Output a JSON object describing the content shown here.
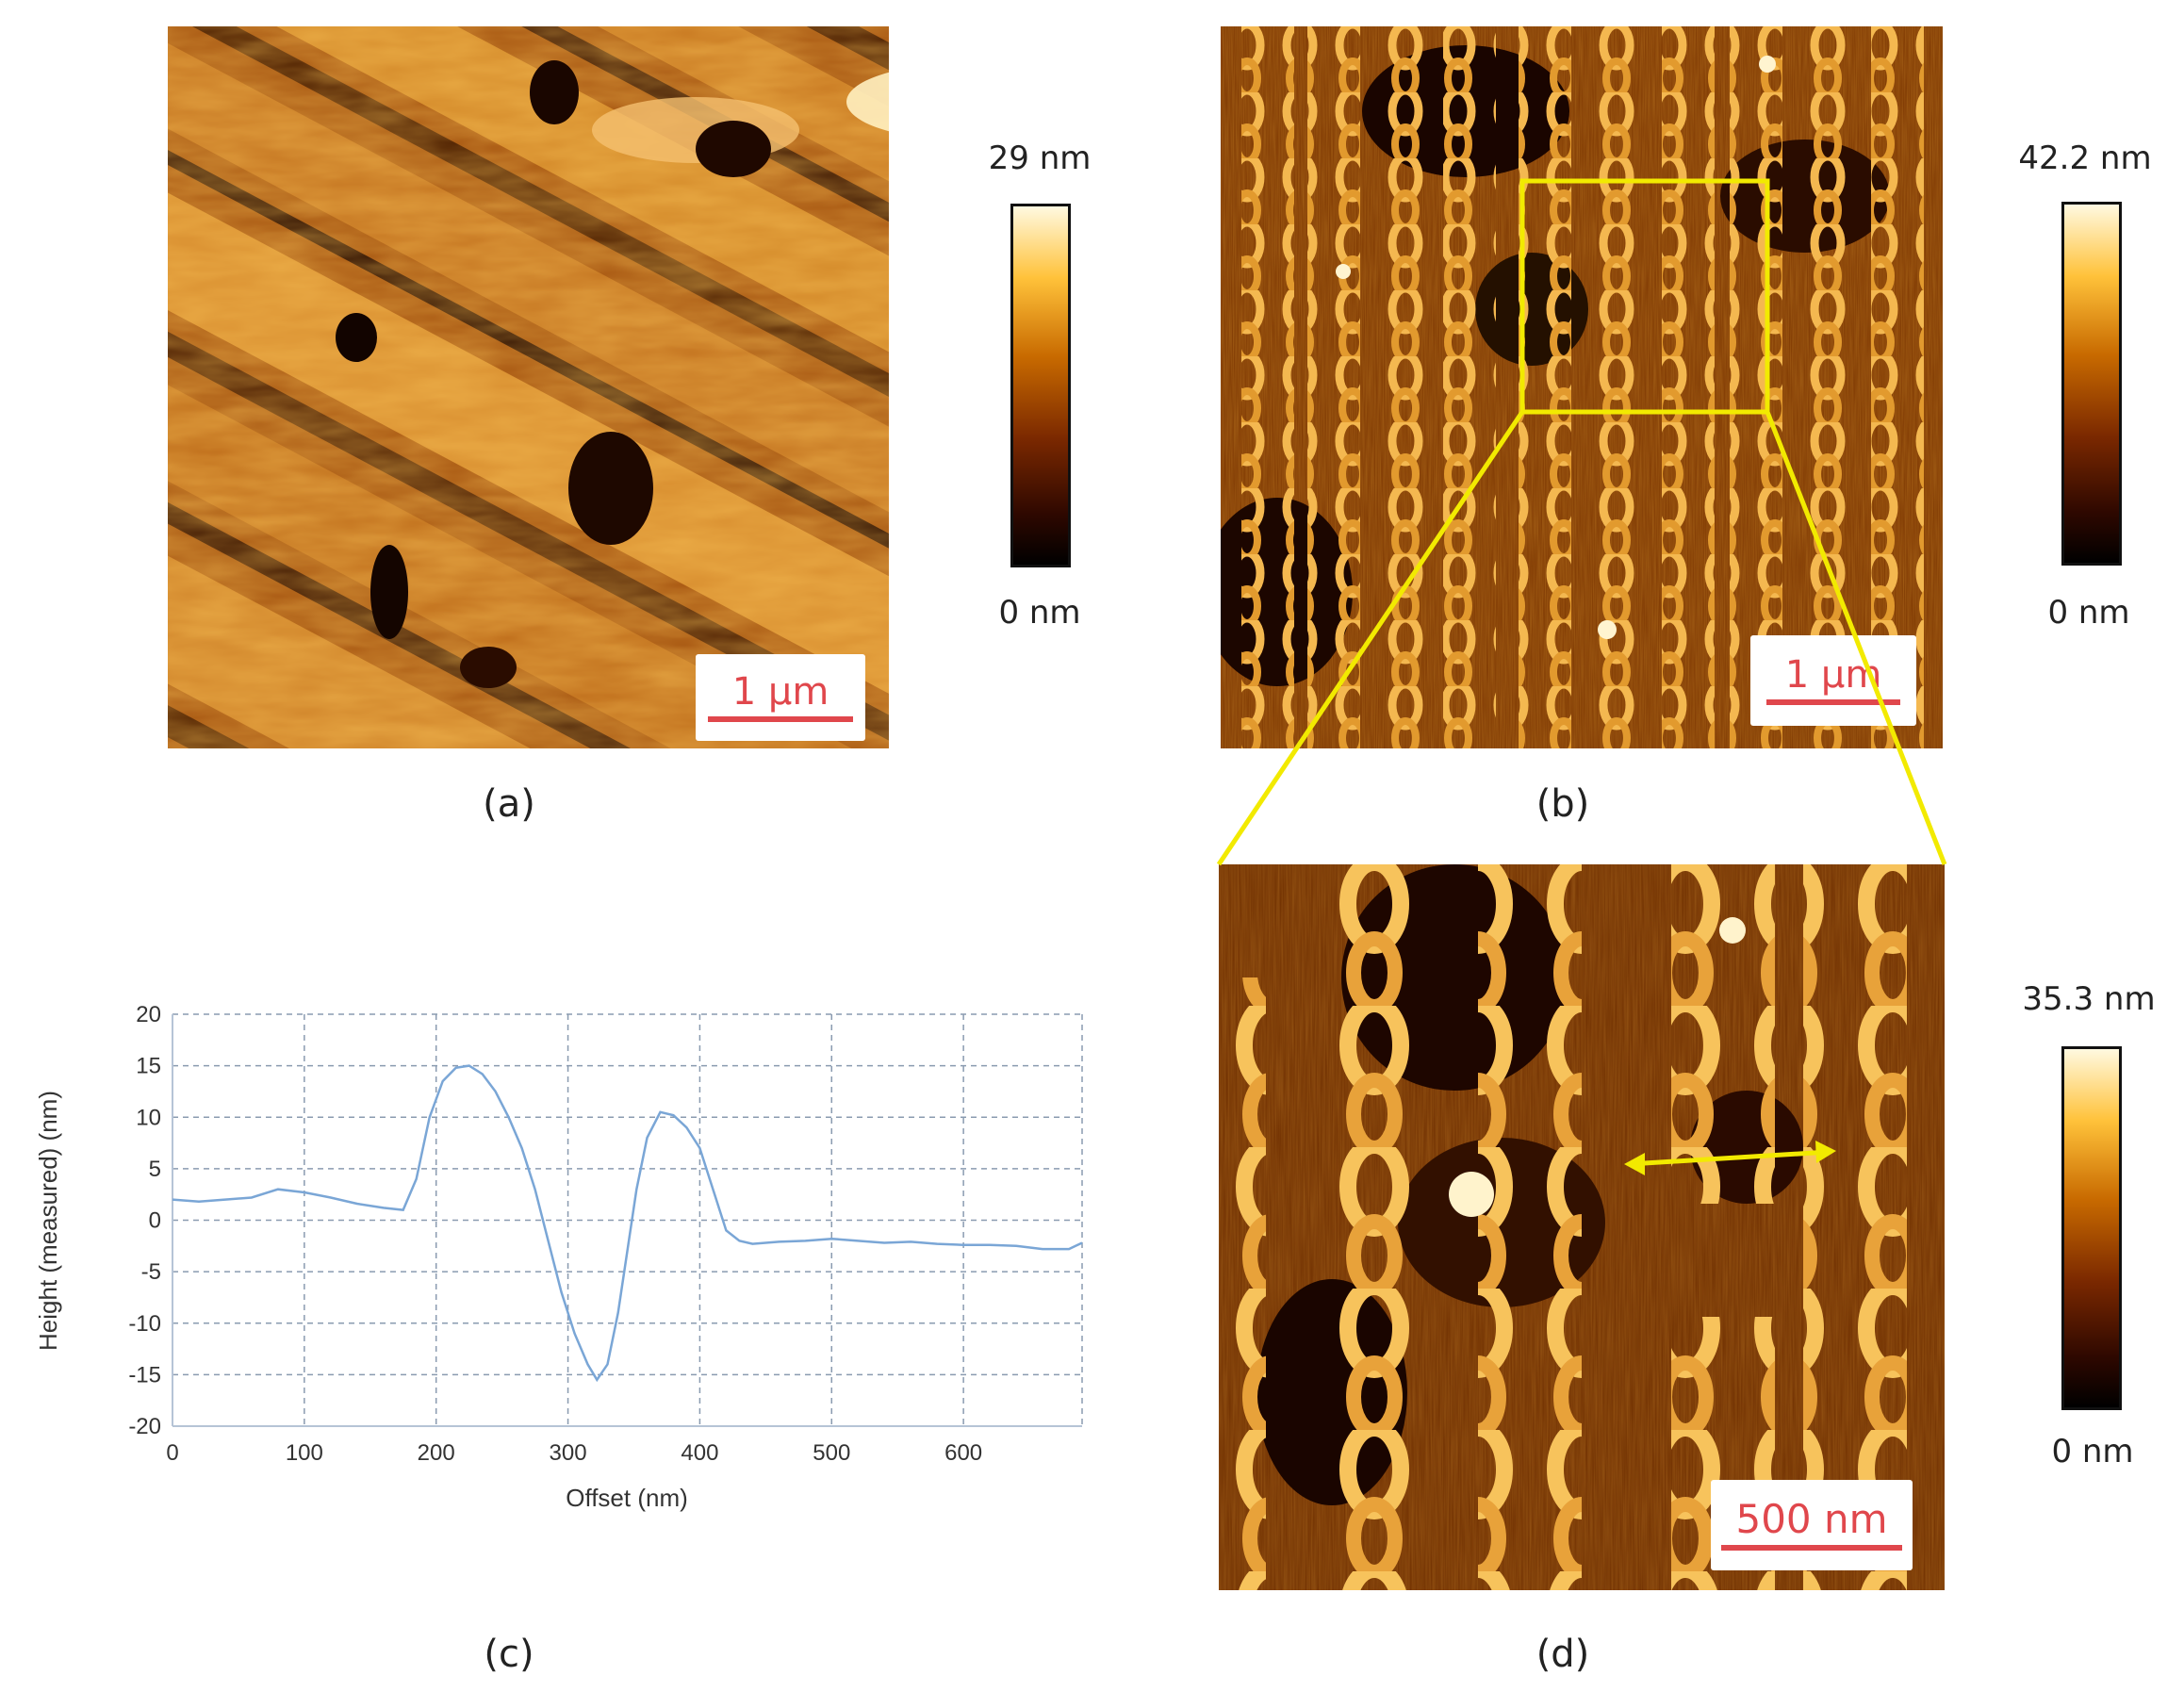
{
  "panels": {
    "a": {
      "label": "(a)",
      "scale_bar": "1 µm",
      "colorbar": {
        "max": "29 nm",
        "min": "0 nm"
      }
    },
    "b": {
      "label": "(b)",
      "scale_bar": "1 µm",
      "colorbar": {
        "max": "42.2 nm",
        "min": "0 nm"
      }
    },
    "c": {
      "label": "(c)"
    },
    "d": {
      "label": "(d)",
      "scale_bar": "500 nm",
      "colorbar": {
        "max": "35.3 nm",
        "min": "0 nm"
      }
    }
  },
  "colors": {
    "zoom_box": "#f2ea00",
    "scale_bar": "#e0474c",
    "profile_line": "#7aa6d6",
    "grid": "#8a9bb0"
  },
  "chart_data": {
    "type": "line",
    "xlabel": "Offset (nm)",
    "ylabel": "Height (measured) (nm)",
    "xlim": [
      0,
      690
    ],
    "ylim": [
      -20,
      20
    ],
    "xticks": [
      0,
      100,
      200,
      300,
      400,
      500,
      600
    ],
    "yticks": [
      -20,
      -15,
      -10,
      -5,
      0,
      5,
      10,
      15,
      20
    ],
    "grid": true,
    "series": [
      {
        "x": [
          0,
          20,
          40,
          60,
          80,
          100,
          120,
          140,
          160,
          175,
          185,
          195,
          205,
          215,
          225,
          235,
          245,
          255,
          265,
          275,
          285,
          295,
          305,
          315,
          322,
          330,
          338,
          345,
          352,
          360,
          370,
          380,
          390,
          400,
          410,
          420,
          430,
          440,
          460,
          480,
          500,
          520,
          540,
          560,
          580,
          600,
          620,
          640,
          660,
          680,
          690
        ],
        "y": [
          2,
          1.8,
          2,
          2.2,
          3,
          2.7,
          2.2,
          1.6,
          1.2,
          1,
          4,
          10,
          13.5,
          14.8,
          15,
          14.2,
          12.5,
          10,
          7,
          3,
          -2,
          -7,
          -11,
          -14,
          -15.5,
          -14,
          -9,
          -3,
          3,
          8,
          10.5,
          10.2,
          9,
          7,
          3,
          -1,
          -2,
          -2.3,
          -2.1,
          -2,
          -1.8,
          -2,
          -2.2,
          -2.1,
          -2.3,
          -2.4,
          -2.4,
          -2.5,
          -2.8,
          -2.8,
          -2.2
        ]
      }
    ]
  }
}
